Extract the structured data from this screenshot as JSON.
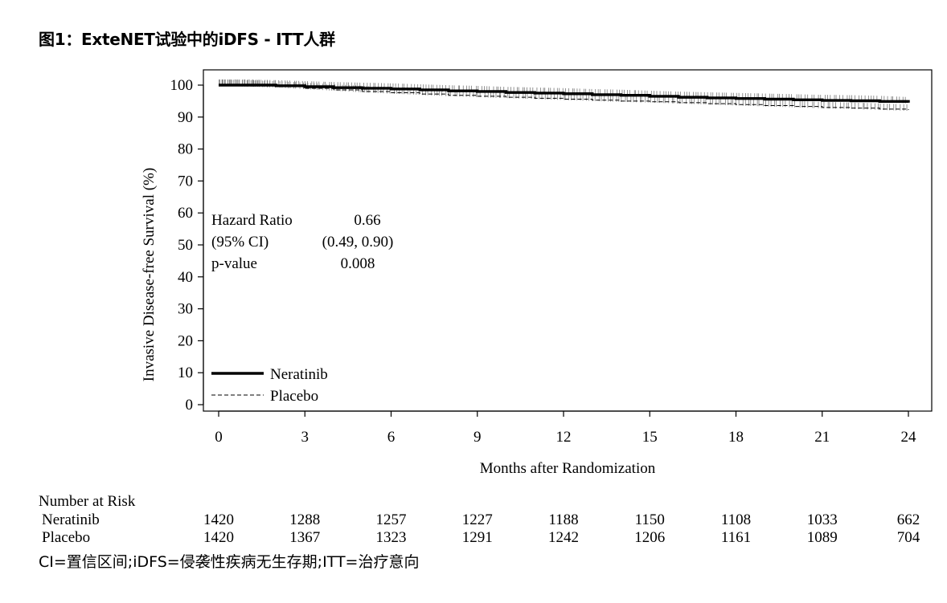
{
  "figure_title": "图1：ExteNET试验中的iDFS - ITT人群",
  "footnote": "CI=置信区间;iDFS=侵袭性疾病无生存期;ITT=治疗意向",
  "chart_data": {
    "type": "line",
    "title": "",
    "xlabel": "Months after Randomization",
    "ylabel": "Invasive Disease-free Survival (%)",
    "xlim": [
      0,
      24
    ],
    "ylim": [
      0,
      100
    ],
    "xticks": [
      0,
      3,
      6,
      9,
      12,
      15,
      18,
      21,
      24
    ],
    "yticks": [
      0,
      10,
      20,
      30,
      40,
      50,
      60,
      70,
      80,
      90,
      100
    ],
    "grid": false,
    "legend_position": "bottom-left",
    "series": [
      {
        "name": "Neratinib",
        "style": "solid-thick",
        "x": [
          0,
          1,
          2,
          3,
          4,
          5,
          6,
          7,
          8,
          9,
          10,
          11,
          12,
          13,
          14,
          15,
          16,
          17,
          18,
          19,
          20,
          21,
          22,
          23,
          24
        ],
        "y": [
          100,
          100,
          99.8,
          99.5,
          99.2,
          99,
          98.8,
          98.5,
          98.2,
          98,
          97.7,
          97.5,
          97.3,
          97,
          96.8,
          96.5,
          96.2,
          96,
          95.8,
          95.6,
          95.4,
          95.2,
          95.1,
          94.9,
          94.5
        ]
      },
      {
        "name": "Placebo",
        "style": "dashed",
        "x": [
          0,
          1,
          2,
          3,
          4,
          5,
          6,
          7,
          8,
          9,
          10,
          11,
          12,
          13,
          14,
          15,
          16,
          17,
          18,
          19,
          20,
          21,
          22,
          23,
          24
        ],
        "y": [
          100,
          99.8,
          99.5,
          99,
          98.5,
          98,
          97.6,
          97.2,
          96.8,
          96.5,
          96.2,
          95.9,
          95.6,
          95.3,
          95,
          94.8,
          94.5,
          94.2,
          93.9,
          93.6,
          93.3,
          93,
          92.8,
          92.5,
          92.2
        ]
      }
    ],
    "stats": [
      {
        "label": "Hazard Ratio",
        "value": "0.66"
      },
      {
        "label": "(95% CI)",
        "value": "(0.49, 0.90)"
      },
      {
        "label": "p-value",
        "value": "0.008"
      }
    ],
    "risk_table": {
      "title": "Number at Risk",
      "months": [
        0,
        3,
        6,
        9,
        12,
        15,
        18,
        21,
        24
      ],
      "rows": [
        {
          "name": "Neratinib",
          "values": [
            1420,
            1288,
            1257,
            1227,
            1188,
            1150,
            1108,
            1033,
            662
          ]
        },
        {
          "name": "Placebo",
          "values": [
            1420,
            1367,
            1323,
            1291,
            1242,
            1206,
            1161,
            1089,
            704
          ]
        }
      ]
    }
  }
}
